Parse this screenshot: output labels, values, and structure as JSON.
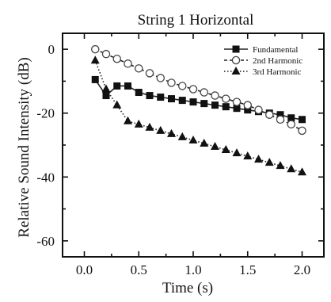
{
  "chart_data": {
    "type": "line",
    "title": "String 1 Horizontal",
    "xlabel": "Time (s)",
    "ylabel": "Relative Sound Intensity (dB)",
    "xlim": [
      -0.2,
      2.2
    ],
    "ylim": [
      -65,
      5
    ],
    "xticks": [
      0.0,
      0.5,
      1.0,
      1.5,
      2.0
    ],
    "xtick_labels": [
      "0.0",
      "0.5",
      "1.0",
      "1.5",
      "2.0"
    ],
    "yticks": [
      0,
      -20,
      -40,
      -60
    ],
    "ytick_labels": [
      "0",
      "-20",
      "-40",
      "-60"
    ],
    "grid": false,
    "legend_position": "top-right",
    "series": [
      {
        "name": "Fundamental",
        "marker": "filled-square",
        "line": "solid",
        "x": [
          0.1,
          0.2,
          0.3,
          0.4,
          0.5,
          0.6,
          0.7,
          0.8,
          0.9,
          1.0,
          1.1,
          1.2,
          1.3,
          1.4,
          1.5,
          1.6,
          1.7,
          1.8,
          1.9,
          2.0
        ],
        "y": [
          -9.5,
          -14.5,
          -11.5,
          -11.5,
          -13.5,
          -14.5,
          -15.0,
          -15.5,
          -16.0,
          -16.5,
          -17.0,
          -17.5,
          -18.0,
          -18.5,
          -19.0,
          -19.5,
          -20.0,
          -20.5,
          -21.5,
          -22.0
        ]
      },
      {
        "name": "2nd Harmonic",
        "marker": "open-circle",
        "line": "dashed",
        "x": [
          0.1,
          0.2,
          0.3,
          0.4,
          0.5,
          0.6,
          0.7,
          0.8,
          0.9,
          1.0,
          1.1,
          1.2,
          1.3,
          1.4,
          1.5,
          1.6,
          1.7,
          1.8,
          1.9,
          2.0
        ],
        "y": [
          0.0,
          -1.5,
          -3.0,
          -4.5,
          -6.0,
          -7.5,
          -9.0,
          -10.5,
          -11.5,
          -12.5,
          -13.5,
          -14.5,
          -15.5,
          -16.5,
          -17.5,
          -19.0,
          -20.5,
          -22.0,
          -23.5,
          -25.5
        ]
      },
      {
        "name": "3rd Harmonic",
        "marker": "filled-triangle",
        "line": "dotted",
        "x": [
          0.1,
          0.2,
          0.3,
          0.4,
          0.5,
          0.6,
          0.7,
          0.8,
          0.9,
          1.0,
          1.1,
          1.2,
          1.3,
          1.4,
          1.5,
          1.6,
          1.7,
          1.8,
          1.9,
          2.0
        ],
        "y": [
          -3.5,
          -12.5,
          -17.5,
          -22.5,
          -23.5,
          -24.5,
          -25.5,
          -26.5,
          -27.5,
          -28.5,
          -29.5,
          -30.5,
          -31.5,
          -32.5,
          -33.5,
          -34.5,
          -35.5,
          -36.5,
          -37.5,
          -38.5
        ]
      }
    ]
  }
}
